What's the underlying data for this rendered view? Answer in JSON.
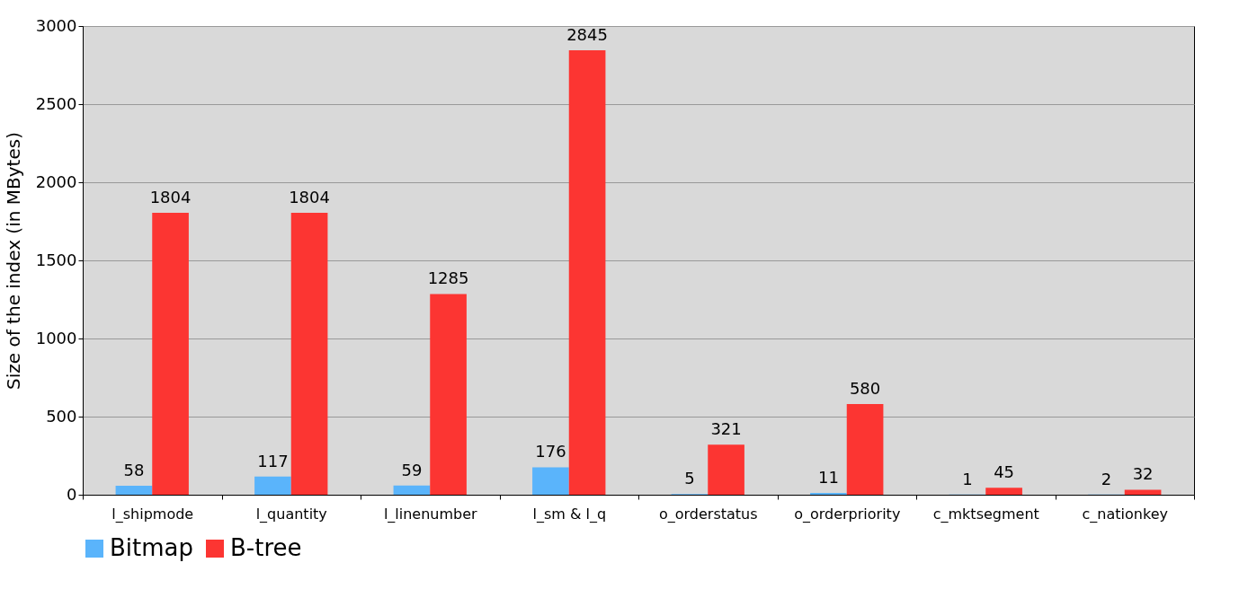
{
  "chart_data": {
    "type": "bar",
    "ylabel": "Size of the index (in MBytes)",
    "categories": [
      "l_shipmode",
      "l_quantity",
      "l_linenumber",
      "l_sm & l_q",
      "o_orderstatus",
      "o_orderpriority",
      "c_mktsegment",
      "c_nationkey"
    ],
    "series": [
      {
        "name": "Bitmap",
        "color": "#5ab4fb",
        "values": [
          58,
          117,
          59,
          176,
          5,
          11,
          1,
          2
        ]
      },
      {
        "name": "B-tree",
        "color": "#fc3532",
        "values": [
          1804,
          1804,
          1285,
          2845,
          321,
          580,
          45,
          32
        ]
      }
    ],
    "ylim": [
      0,
      3000
    ],
    "yticks": [
      0,
      500,
      1000,
      1500,
      2000,
      2500,
      3000
    ],
    "grid": "y",
    "legend": "bottom",
    "data_labels": true
  }
}
